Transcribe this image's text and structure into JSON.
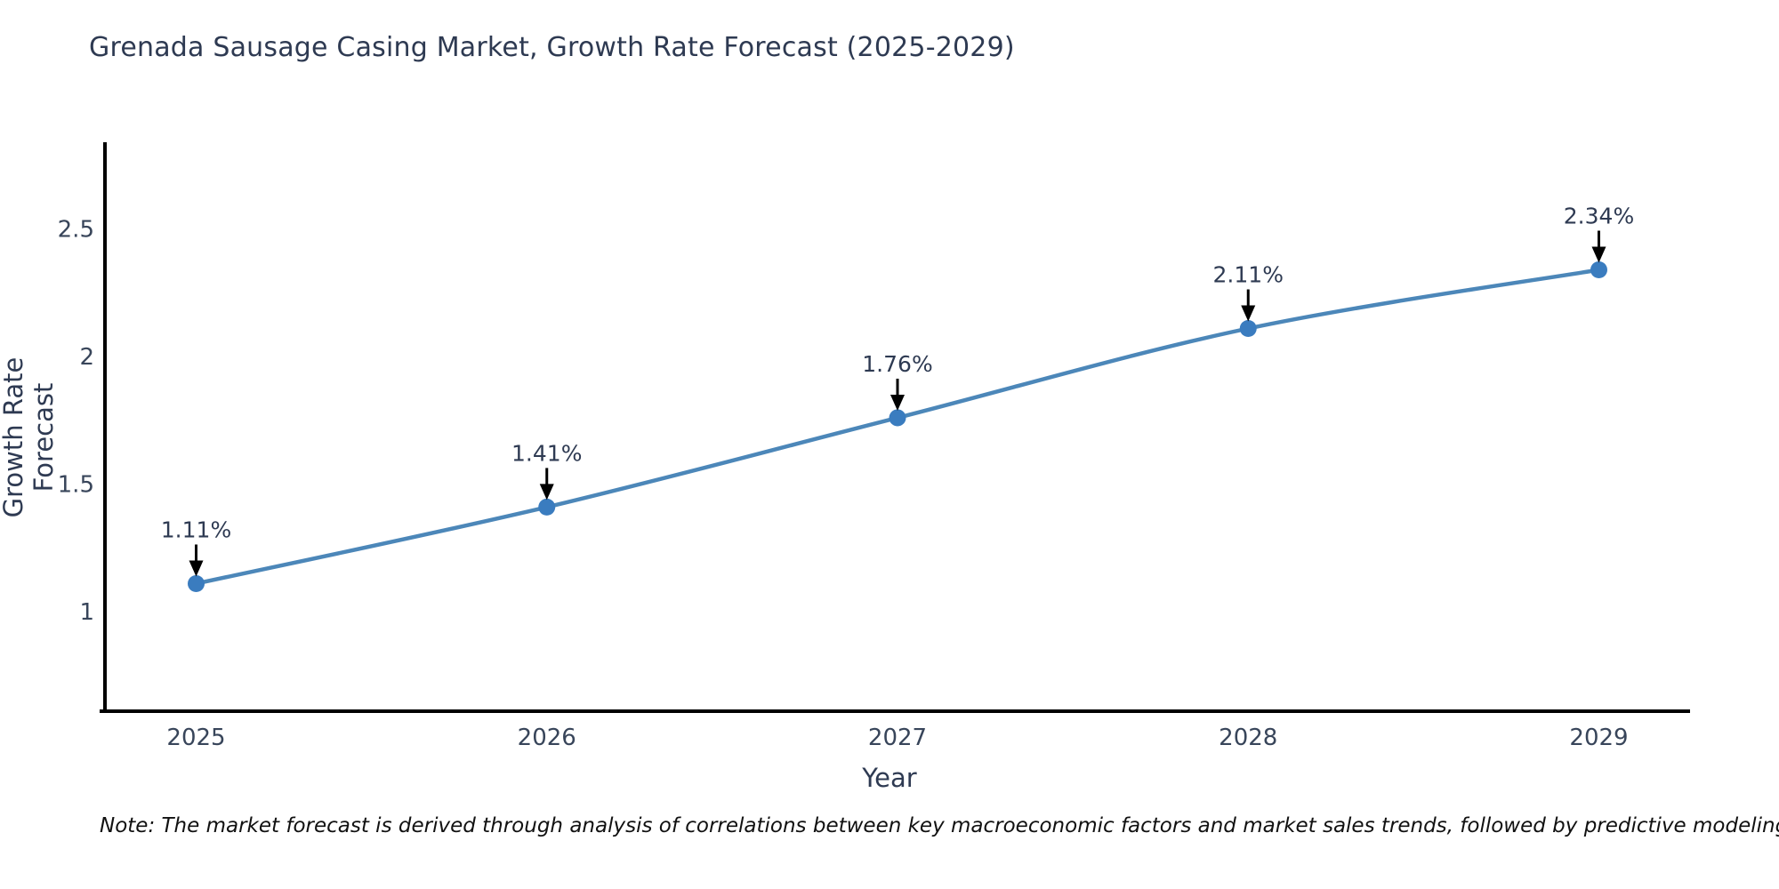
{
  "note": "Note: The market forecast is derived through analysis of correlations between key macroeconomic factors and market sales trends, followed by predictive modeling to project future sales",
  "chart_data": {
    "type": "line",
    "title": "Grenada Sausage Casing Market, Growth Rate Forecast (2025-2029)",
    "xlabel": "Year",
    "ylabel": "Growth Rate Forecast",
    "categories": [
      "2025",
      "2026",
      "2027",
      "2028",
      "2029"
    ],
    "series": [
      {
        "name": "Growth Rate Forecast",
        "values": [
          1.11,
          1.41,
          1.76,
          2.11,
          2.34
        ]
      }
    ],
    "data_labels": [
      "1.11%",
      "1.41%",
      "1.76%",
      "2.11%",
      "2.34%"
    ],
    "yticks": [
      1,
      1.5,
      2,
      2.5
    ],
    "ytick_labels": [
      "1",
      "1.5",
      "2",
      "2.5"
    ],
    "xlim": [
      2024.74,
      2029.26
    ],
    "ylim": [
      0.61,
      2.84
    ],
    "x_numeric": [
      2025,
      2026,
      2027,
      2028,
      2029
    ],
    "grid": false,
    "legend": false,
    "colors": {
      "line": "#4c87b9",
      "marker": "#3a7cbf",
      "axis": "#000000",
      "annotation_arrow": "#000000",
      "title_text": "#2e3a52",
      "tick_text": "#38455a",
      "annotation_text": "#2e3a52",
      "note_text": "#111111",
      "background": "#ffffff"
    }
  }
}
